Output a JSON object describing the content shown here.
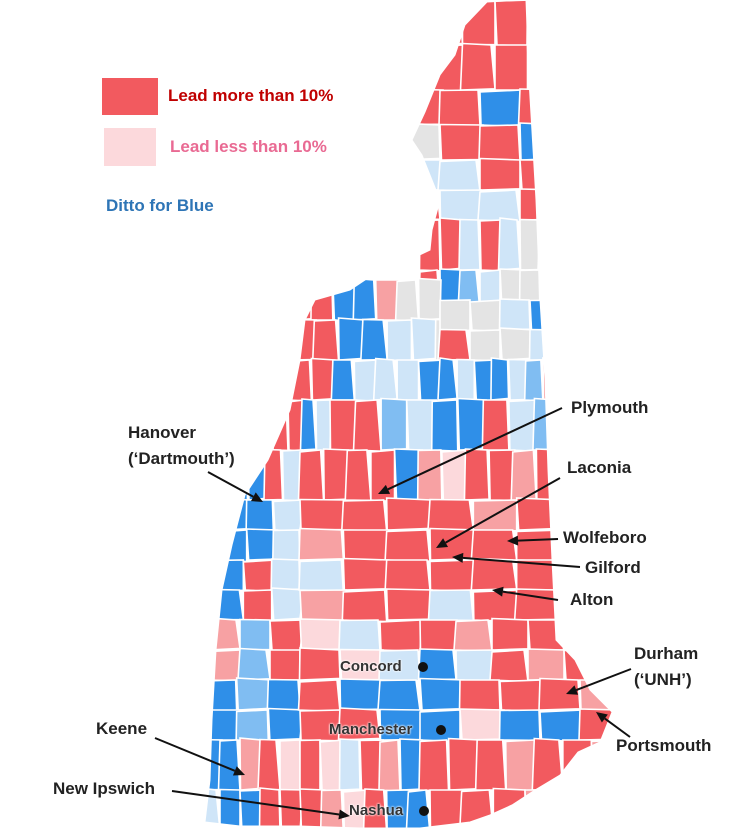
{
  "legend": {
    "items": [
      {
        "label": "Lead more than 10%",
        "swatch_color": "#f25a5f",
        "text_color": "#c00000"
      },
      {
        "label": "Lead less than 10%",
        "swatch_color": "#fcd9dc",
        "text_color": "#e96a93"
      }
    ],
    "ditto_label": "Ditto for Blue",
    "ditto_color": "#2e75b6"
  },
  "colors": {
    "red_strong": "#f25a5f",
    "red_light": "#f7a1a3",
    "red_faint": "#fcd9dc",
    "blue_strong": "#2f8fe8",
    "blue_medium": "#80bdf2",
    "blue_light": "#cfe5f8",
    "gray": "#e4e4e4",
    "border": "#ffffff"
  },
  "towns": {
    "plymouth": "Plymouth",
    "hanover_line1": "Hanover",
    "hanover_line2": "(‘Dartmouth’)",
    "laconia": "Laconia",
    "wolfeboro": "Wolfeboro",
    "gilford": "Gilford",
    "alton": "Alton",
    "durham_line1": "Durham",
    "durham_line2": "(‘UNH’)",
    "portsmouth": "Portsmouth",
    "keene": "Keene",
    "new_ipswich": "New Ipswich"
  },
  "cities": {
    "concord": "Concord",
    "manchester": "Manchester",
    "nashua": "Nashua"
  }
}
